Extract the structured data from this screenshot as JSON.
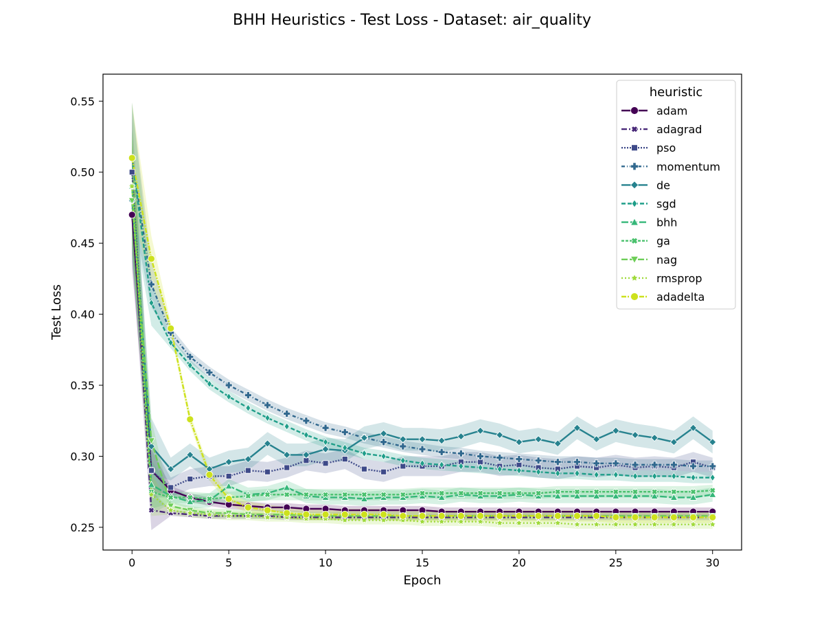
{
  "chart_data": {
    "type": "line",
    "title": "BHH Heuristics - Test Loss - Dataset: air_quality",
    "xlabel": "Epoch",
    "ylabel": "Test Loss",
    "xlim": [
      -1.5,
      31.5
    ],
    "ylim": [
      0.234,
      0.569
    ],
    "xticks": [
      0,
      5,
      10,
      15,
      20,
      25,
      30
    ],
    "xtick_labels": [
      "0",
      "5",
      "10",
      "15",
      "20",
      "25",
      "30"
    ],
    "yticks": [
      0.25,
      0.3,
      0.35,
      0.4,
      0.45,
      0.5,
      0.55
    ],
    "ytick_labels": [
      "0.25",
      "0.30",
      "0.35",
      "0.40",
      "0.45",
      "0.50",
      "0.55"
    ],
    "grid": false,
    "legend": {
      "title": "heuristic",
      "placement": "top-right"
    },
    "x": [
      0,
      1,
      2,
      3,
      4,
      5,
      6,
      7,
      8,
      9,
      10,
      11,
      12,
      13,
      14,
      15,
      16,
      17,
      18,
      19,
      20,
      21,
      22,
      23,
      24,
      25,
      26,
      27,
      28,
      29,
      30
    ],
    "series": [
      {
        "name": "adam",
        "color": "#440154",
        "dash": "",
        "marker": "circle",
        "values": [
          0.47,
          0.29,
          0.276,
          0.271,
          0.268,
          0.266,
          0.265,
          0.264,
          0.264,
          0.263,
          0.263,
          0.262,
          0.262,
          0.262,
          0.262,
          0.262,
          0.261,
          0.261,
          0.261,
          0.261,
          0.261,
          0.261,
          0.261,
          0.261,
          0.261,
          0.261,
          0.261,
          0.261,
          0.261,
          0.261,
          0.261
        ],
        "band": 0.003
      },
      {
        "name": "adagrad",
        "color": "#482878",
        "dash": "8,3,2,3",
        "marker": "x",
        "values": [
          0.48,
          0.262,
          0.26,
          0.259,
          0.258,
          0.258,
          0.258,
          0.258,
          0.257,
          0.257,
          0.257,
          0.257,
          0.257,
          0.257,
          0.257,
          0.257,
          0.257,
          0.257,
          0.257,
          0.257,
          0.257,
          0.257,
          0.257,
          0.257,
          0.257,
          0.257,
          0.257,
          0.257,
          0.257,
          0.257,
          0.257
        ],
        "band": 0.002
      },
      {
        "name": "pso",
        "color": "#3e4a89",
        "dash": "2,2",
        "marker": "square",
        "values": [
          0.5,
          0.29,
          0.278,
          0.284,
          0.286,
          0.286,
          0.29,
          0.289,
          0.292,
          0.297,
          0.295,
          0.298,
          0.291,
          0.289,
          0.293,
          0.293,
          0.293,
          0.296,
          0.296,
          0.293,
          0.294,
          0.292,
          0.291,
          0.293,
          0.292,
          0.294,
          0.292,
          0.293,
          0.292,
          0.296,
          0.292
        ],
        "band": 0.007
      },
      {
        "name": "momentum",
        "color": "#31688e",
        "dash": "5,3,1,3",
        "marker": "plus",
        "values": [
          0.51,
          0.421,
          0.387,
          0.37,
          0.359,
          0.35,
          0.343,
          0.336,
          0.33,
          0.325,
          0.32,
          0.317,
          0.313,
          0.31,
          0.307,
          0.305,
          0.303,
          0.302,
          0.3,
          0.299,
          0.298,
          0.297,
          0.296,
          0.296,
          0.295,
          0.295,
          0.294,
          0.294,
          0.294,
          0.293,
          0.293
        ],
        "band": 0.004
      },
      {
        "name": "de",
        "color": "#26828e",
        "dash": "",
        "marker": "diamond",
        "values": [
          0.48,
          0.307,
          0.291,
          0.301,
          0.291,
          0.296,
          0.298,
          0.309,
          0.301,
          0.301,
          0.305,
          0.304,
          0.313,
          0.316,
          0.312,
          0.312,
          0.311,
          0.314,
          0.318,
          0.315,
          0.31,
          0.312,
          0.309,
          0.32,
          0.312,
          0.318,
          0.315,
          0.313,
          0.31,
          0.32,
          0.31
        ],
        "band": 0.008
      },
      {
        "name": "sgd",
        "color": "#1f9e89",
        "dash": "6,3",
        "marker": "thin-diamond",
        "values": [
          0.51,
          0.408,
          0.38,
          0.364,
          0.351,
          0.342,
          0.334,
          0.327,
          0.321,
          0.315,
          0.31,
          0.306,
          0.302,
          0.3,
          0.297,
          0.295,
          0.294,
          0.293,
          0.292,
          0.291,
          0.29,
          0.289,
          0.288,
          0.288,
          0.287,
          0.287,
          0.286,
          0.286,
          0.286,
          0.285,
          0.285
        ],
        "band": 0.004
      },
      {
        "name": "bhh",
        "color": "#35b779",
        "dash": "10,3",
        "marker": "triangle-up",
        "values": [
          0.49,
          0.28,
          0.272,
          0.268,
          0.269,
          0.279,
          0.273,
          0.274,
          0.278,
          0.272,
          0.271,
          0.271,
          0.27,
          0.271,
          0.271,
          0.272,
          0.271,
          0.273,
          0.272,
          0.272,
          0.273,
          0.272,
          0.272,
          0.272,
          0.272,
          0.272,
          0.272,
          0.272,
          0.271,
          0.271,
          0.273
        ],
        "band": 0.005
      },
      {
        "name": "ga",
        "color": "#4ac16d",
        "dash": "4,2",
        "marker": "x-square",
        "values": [
          0.49,
          0.275,
          0.271,
          0.271,
          0.27,
          0.271,
          0.272,
          0.273,
          0.273,
          0.273,
          0.273,
          0.273,
          0.273,
          0.273,
          0.273,
          0.274,
          0.274,
          0.274,
          0.274,
          0.274,
          0.274,
          0.274,
          0.275,
          0.275,
          0.275,
          0.275,
          0.275,
          0.275,
          0.275,
          0.275,
          0.276
        ],
        "band": 0.004
      },
      {
        "name": "nag",
        "color": "#6ece58",
        "dash": "9,3",
        "marker": "triangle-down",
        "values": [
          0.48,
          0.311,
          0.265,
          0.262,
          0.26,
          0.26,
          0.259,
          0.259,
          0.259,
          0.258,
          0.258,
          0.258,
          0.258,
          0.258,
          0.258,
          0.258,
          0.258,
          0.258,
          0.258,
          0.258,
          0.258,
          0.258,
          0.258,
          0.258,
          0.258,
          0.258,
          0.258,
          0.258,
          0.258,
          0.258,
          0.258
        ],
        "band": 0.003
      },
      {
        "name": "rmsprop",
        "color": "#9fda3a",
        "dash": "2,3",
        "marker": "star",
        "values": [
          0.49,
          0.273,
          0.262,
          0.26,
          0.259,
          0.258,
          0.258,
          0.257,
          0.257,
          0.256,
          0.256,
          0.255,
          0.255,
          0.255,
          0.255,
          0.254,
          0.254,
          0.254,
          0.254,
          0.253,
          0.253,
          0.253,
          0.253,
          0.252,
          0.252,
          0.252,
          0.252,
          0.252,
          0.252,
          0.252,
          0.252
        ],
        "band": 0.003
      },
      {
        "name": "adadelta",
        "color": "#cde11d",
        "dash": "7,2,2,2",
        "marker": "circle",
        "values": [
          0.51,
          0.439,
          0.39,
          0.326,
          0.287,
          0.27,
          0.264,
          0.262,
          0.26,
          0.259,
          0.259,
          0.259,
          0.259,
          0.259,
          0.258,
          0.258,
          0.258,
          0.258,
          0.258,
          0.258,
          0.258,
          0.258,
          0.258,
          0.258,
          0.258,
          0.257,
          0.257,
          0.257,
          0.257,
          0.257,
          0.257
        ],
        "band": 0.004
      }
    ]
  }
}
